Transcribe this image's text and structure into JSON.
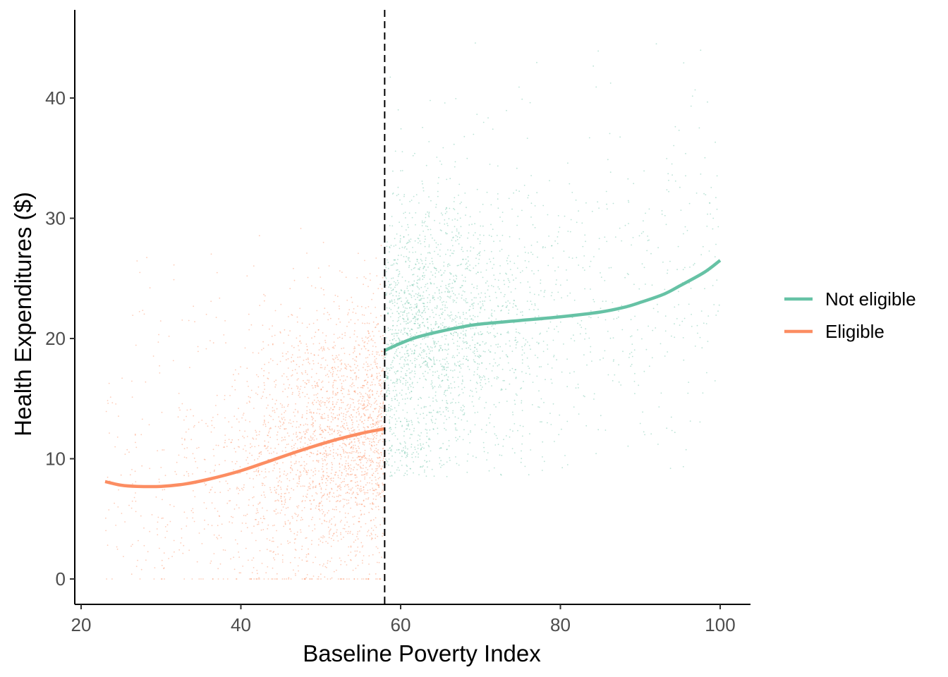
{
  "chart_data": {
    "type": "scatter",
    "xlabel": "Baseline Poverty Index",
    "ylabel": "Health Expenditures ($)",
    "xlim": [
      20,
      100
    ],
    "ylim": [
      0,
      45
    ],
    "x_ticks": [
      20,
      40,
      60,
      80,
      100
    ],
    "y_ticks": [
      0,
      10,
      20,
      30,
      40
    ],
    "x_tick_labels": [
      "20",
      "40",
      "60",
      "80",
      "100"
    ],
    "y_tick_labels": [
      "0",
      "10",
      "20",
      "30",
      "40"
    ],
    "cutoff": 58,
    "grid": false,
    "legend_position": "right",
    "series": [
      {
        "name": "Not eligible",
        "color": "#66c2a5",
        "x_range": [
          58,
          100
        ],
        "fit": {
          "x": [
            58,
            60,
            62,
            65,
            68,
            70,
            75,
            80,
            85,
            88,
            90,
            93,
            95,
            98,
            100
          ],
          "y": [
            19.0,
            19.6,
            20.1,
            20.6,
            21.0,
            21.2,
            21.5,
            21.8,
            22.2,
            22.6,
            23.0,
            23.7,
            24.4,
            25.5,
            26.5
          ]
        }
      },
      {
        "name": "Eligible",
        "color": "#fc8d62",
        "x_range": [
          23,
          58
        ],
        "fit": {
          "x": [
            23,
            25,
            27,
            30,
            33,
            36,
            40,
            44,
            48,
            52,
            55,
            58
          ],
          "y": [
            8.1,
            7.8,
            7.7,
            7.7,
            7.9,
            8.3,
            9.0,
            9.9,
            10.8,
            11.6,
            12.1,
            12.5
          ]
        }
      }
    ]
  }
}
